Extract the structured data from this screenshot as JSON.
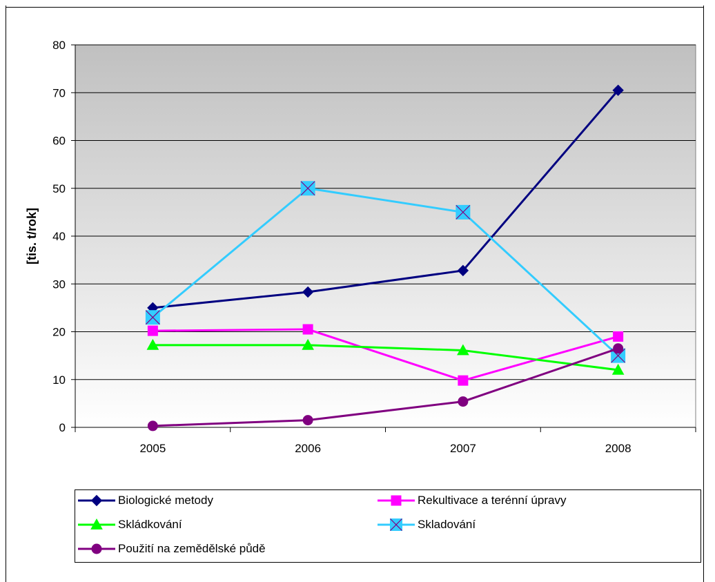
{
  "chart_data": {
    "type": "line",
    "title": "",
    "xlabel": "",
    "ylabel": "[tis. t/rok]",
    "categories": [
      "2005",
      "2006",
      "2007",
      "2008"
    ],
    "ylim": [
      0,
      80
    ],
    "yticks": [
      0,
      10,
      20,
      30,
      40,
      50,
      60,
      70,
      80
    ],
    "grid": true,
    "legend_position": "bottom",
    "series": [
      {
        "name": "Biologické metody",
        "values": [
          25.0,
          28.3,
          32.8,
          70.5
        ],
        "color": "#000080",
        "marker": "diamond"
      },
      {
        "name": "Rekultivace a terénní úpravy",
        "values": [
          20.2,
          20.5,
          9.8,
          19.0
        ],
        "color": "#ff00ff",
        "marker": "square"
      },
      {
        "name": "Skládkování",
        "values": [
          17.2,
          17.2,
          16.1,
          12.0
        ],
        "color": "#00ff00",
        "marker": "triangle"
      },
      {
        "name": "Skladování",
        "values": [
          23.0,
          50.0,
          45.0,
          15.0
        ],
        "color": "#33ccff",
        "marker": "xsquare"
      },
      {
        "name": "Použití na zemědělské půdě",
        "values": [
          0.3,
          1.5,
          5.4,
          16.5
        ],
        "color": "#800080",
        "marker": "circle"
      }
    ]
  }
}
